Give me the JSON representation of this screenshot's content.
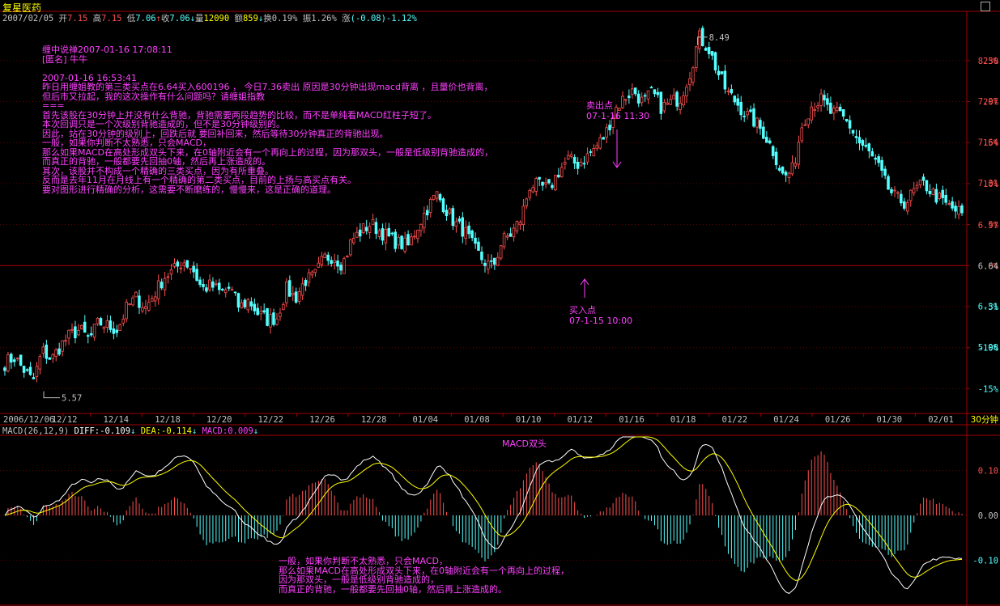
{
  "header": {
    "stock_name": "复星医药",
    "date": "2007/02/05",
    "open_label": "开",
    "open": "7.15",
    "high_label": "高",
    "high": "7.15",
    "low_label": "低",
    "low": "7.06",
    "close_label": "收",
    "close": "7.06",
    "volume_label": "量",
    "volume": "12090",
    "amount_label": "额",
    "amount": "859",
    "turnover_label": "换",
    "turnover": "0.19%",
    "amplitude_label": "振",
    "amplitude": "1.26%",
    "change_label": "涨",
    "change": "(-0.08)-1.12%"
  },
  "macd_header": {
    "params": "MACD(26,12,9)",
    "diff": "DIFF:-0.109",
    "dea": "DEA:-0.114",
    "macd": "MACD:0.009"
  },
  "period_label": "30分钟",
  "annotations": {
    "main_text": [
      "缠中说禅2007-01-16 17:08:11",
      "[匿名] 牛牛",
      "",
      "2007-01-16 16:53:41",
      "昨日用缠姐教的第三类买点在6.64买入600196 ， 今日7.36卖出 原因是30分钟出现macd背离 ，且量价也背离，",
      "但后市又拉起，我的这次操作有什么问题吗？请缠姐指教",
      "===",
      "首先该股在30分钟上并没有什么背驰，背驰需要两段趋势的比较，而不是单纯看MACD红柱子短了。",
      "本次回调只是一个次级别背驰造成的，但不是30分钟级别的。",
      "因此，站在30分钟的级别上，回跌后就 要回补回来，然后等待30分钟真正的背驰出现。",
      "一般，如果你判断不太熟悉，只会MACD，",
      "那么如果MACD在高处形成双头下来，在0轴附近会有一个再向上的过程，因为那双头，一般是低级别背驰造成的，",
      "而真正的背驰，一般都要先回抽0轴，然后再上涨造成的。",
      "其次，该股并不构成一个精确的三类买点，因为有所重叠。",
      "反而是去年11月在月线上有一个精确的第二类买点，目前的上扬与高买点有关。",
      "要对图形进行精确的分析，这需要不断磨练的，慢慢来，这是正确的道理。"
    ],
    "sell_label": "卖出点",
    "sell_time": "07-1-16 11:30",
    "buy_label": "买入点",
    "buy_time": "07-1-15 10:00",
    "macd_double_top": "MACD双头",
    "bottom_text": [
      "一般，如果你判断不太熟悉，只会MACD，",
      "那么如果MACD在高处形成双头下来，在0轴附近会有一个再向上的过程，",
      "因为那双头，一般是低级别背驰造成的，",
      "而真正的背驰，一般都要先回抽0轴，然后再上涨造成的。"
    ],
    "high_mark": "8.49",
    "low_mark": "5.57"
  },
  "colors": {
    "up": "#ff5050",
    "down": "#54ffff",
    "grid": "#a00000",
    "annotation": "#ff40ff",
    "diff_line": "#ffffff",
    "dea_line": "#ffff00",
    "axis_text": "#c0c0c0"
  },
  "chart_data": [
    {
      "type": "candlestick",
      "title": "",
      "x_tick_labels": [
        "2006/12/06",
        "12/12",
        "12/14",
        "12/18",
        "12/20",
        "12/22",
        "12/26",
        "12/28",
        "01/04",
        "01/08",
        "01/10",
        "01/12",
        "01/16",
        "01/18",
        "01/22",
        "01/24",
        "01/26",
        "01/30",
        "02/01"
      ],
      "y_price_ticks": [
        "8.30",
        "7.97",
        "7.64",
        "7.31",
        "6.97",
        "6.64",
        "6.31",
        "5.98"
      ],
      "y_pct_ticks": [
        "25%",
        "20%",
        "15%",
        "10%",
        "5%",
        "0%",
        "-5%",
        "-10%",
        "-15%"
      ],
      "ylim": [
        5.45,
        8.62
      ],
      "reference_price": 6.64,
      "close_path": [
        5.85,
        5.9,
        5.8,
        5.7,
        5.95,
        5.88,
        6.0,
        6.08,
        6.12,
        6.04,
        6.18,
        6.15,
        6.12,
        6.3,
        6.38,
        6.3,
        6.42,
        6.55,
        6.6,
        6.68,
        6.62,
        6.45,
        6.48,
        6.42,
        6.46,
        6.3,
        6.36,
        6.25,
        6.2,
        6.22,
        6.45,
        6.38,
        6.52,
        6.55,
        6.7,
        6.72,
        6.65,
        6.85,
        6.92,
        6.98,
        6.92,
        6.86,
        6.82,
        6.8,
        6.96,
        7.1,
        7.22,
        7.1,
        6.98,
        6.92,
        6.78,
        6.68,
        6.62,
        6.84,
        6.9,
        7.02,
        7.3,
        7.28,
        7.26,
        7.4,
        7.5,
        7.46,
        7.52,
        7.6,
        7.7,
        7.9,
        8.0,
        8.06,
        7.96,
        8.04,
        7.92,
        7.96,
        8.0,
        8.2,
        8.49,
        8.4,
        8.2,
        8.04,
        7.96,
        7.86,
        7.8,
        7.7,
        7.55,
        7.35,
        7.42,
        7.8,
        7.94,
        7.98,
        7.88,
        7.86,
        7.78,
        7.64,
        7.56,
        7.45,
        7.28,
        7.18,
        7.15,
        7.25,
        7.3,
        7.22,
        7.15,
        7.1,
        7.06
      ],
      "high": 8.49,
      "low": 5.57
    },
    {
      "type": "macd",
      "params": [
        26,
        12,
        9
      ],
      "y_ticks": [
        "0.10",
        "0.00",
        "-0.10"
      ],
      "ylim": [
        -0.195,
        0.175
      ],
      "diff": -0.109,
      "dea": -0.114,
      "macd": 0.009
    }
  ]
}
